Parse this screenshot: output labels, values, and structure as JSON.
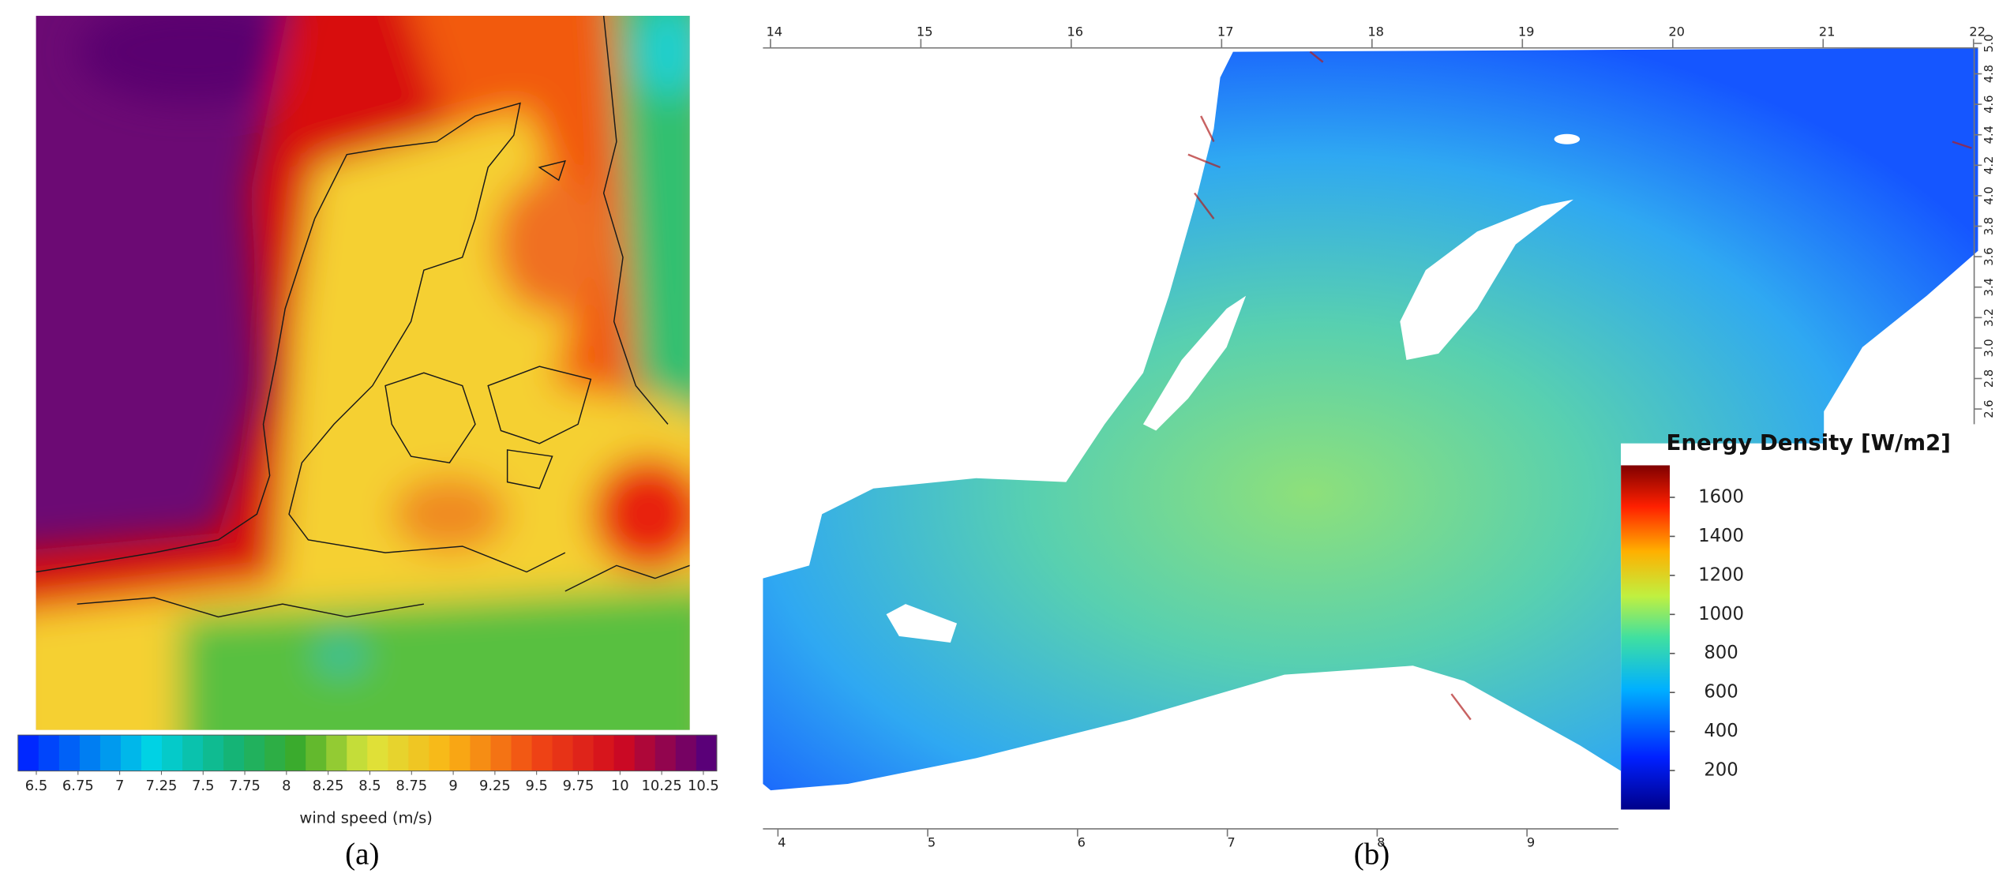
{
  "panel_a": {
    "label": "(a)",
    "colorbar": {
      "title": "wind speed (m/s)",
      "ticks": [
        6.5,
        6.75,
        7,
        7.25,
        7.5,
        7.75,
        8,
        8.25,
        8.5,
        8.75,
        9,
        9.25,
        9.5,
        9.75,
        10,
        10.25,
        10.5
      ],
      "lim": [
        6.39,
        10.58
      ]
    }
  },
  "panel_b": {
    "label": "(b)",
    "top_axis": {
      "ticks": [
        14,
        15,
        16,
        17,
        18,
        19,
        20,
        21,
        22
      ],
      "lim": [
        13.95,
        22.03
      ]
    },
    "right_axis": {
      "ticks": [
        {
          "value": 5,
          "label": "5.0"
        },
        4.8,
        4.6,
        4.4,
        4.2,
        {
          "value": 4,
          "label": "4.0"
        },
        3.8,
        3.6,
        3.4,
        3.2,
        {
          "value": 3,
          "label": "3.0"
        },
        2.8,
        2.6
      ],
      "lim": [
        4.97,
        2.5
      ]
    },
    "bottom_axis": {
      "ticks": [
        4,
        5,
        6,
        7,
        8,
        9
      ],
      "lim": [
        3.9,
        9.61
      ]
    },
    "colorbar": {
      "title": "Energy Density [W/m2]",
      "ticks": [
        200,
        400,
        600,
        800,
        1000,
        1200,
        1400,
        1600
      ],
      "lim": [
        0,
        1764
      ]
    }
  }
}
